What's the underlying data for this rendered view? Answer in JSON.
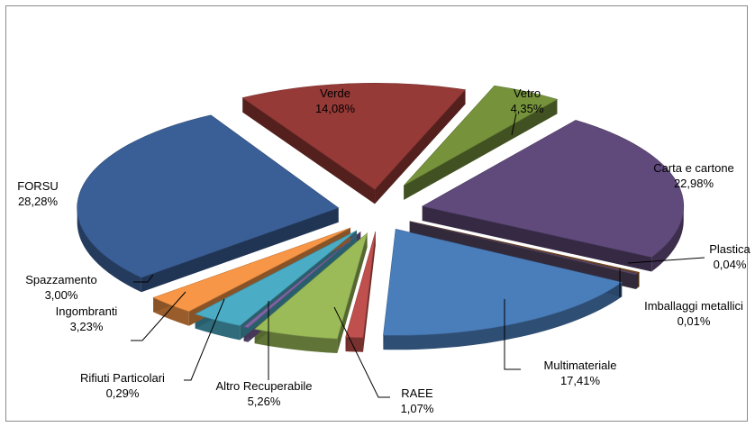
{
  "chart_data": {
    "type": "pie",
    "title": "",
    "style": "exploded-3d",
    "legend": "none",
    "slices": [
      {
        "label": "Verde",
        "value": 14.08,
        "value_label": "14,08%",
        "color": "#963a37"
      },
      {
        "label": "Vetro",
        "value": 4.35,
        "value_label": "4,35%",
        "color": "#76933c"
      },
      {
        "label": "Carta e cartone",
        "value": 22.98,
        "value_label": "22,98%",
        "color": "#604a7b"
      },
      {
        "label": "Plastica",
        "value": 0.04,
        "value_label": "0,04%",
        "color": "#7b4a1e"
      },
      {
        "label": "Imballaggi metallici",
        "value": 0.01,
        "value_label": "0,01%",
        "color": "#5a4a6a"
      },
      {
        "label": "Multimateriale",
        "value": 17.41,
        "value_label": "17,41%",
        "color": "#4a7ebb"
      },
      {
        "label": "RAEE",
        "value": 1.07,
        "value_label": "1,07%",
        "color": "#c0504d"
      },
      {
        "label": "Altro Recuperabile",
        "value": 5.26,
        "value_label": "5,26%",
        "color": "#9bbb59"
      },
      {
        "label": "Rifiuti Particolari",
        "value": 0.29,
        "value_label": "0,29%",
        "color": "#8064a2"
      },
      {
        "label": "Ingombranti",
        "value": 3.23,
        "value_label": "3,23%",
        "color": "#4bacc6"
      },
      {
        "label": "Spazzamento",
        "value": 3.0,
        "value_label": "3,00%",
        "color": "#f79646"
      },
      {
        "label": "FORSU",
        "value": 28.28,
        "value_label": "28,28%",
        "color": "#3a5f96"
      }
    ]
  }
}
